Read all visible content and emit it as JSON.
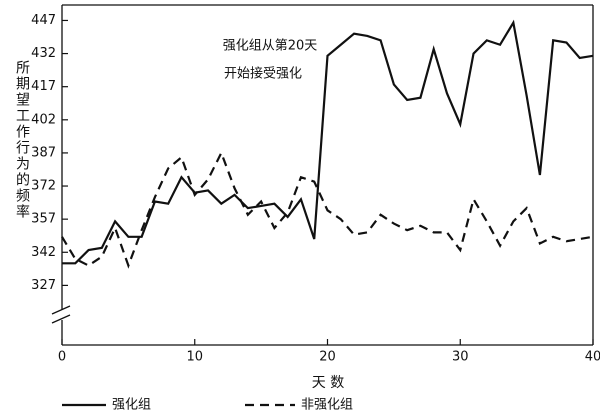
{
  "chart_data": {
    "type": "line",
    "y_label": "所期望工作行为的频率",
    "x_label": "天 数",
    "annotation": [
      "强化组从第20天",
      "开始接受强化"
    ],
    "x": [
      0,
      1,
      2,
      3,
      4,
      5,
      6,
      7,
      8,
      9,
      10,
      11,
      12,
      13,
      14,
      15,
      16,
      17,
      18,
      19,
      20,
      21,
      22,
      23,
      24,
      25,
      26,
      27,
      28,
      29,
      30,
      31,
      32,
      33,
      34,
      35,
      36,
      37,
      38,
      39,
      40
    ],
    "series": [
      {
        "name": "强化组",
        "color": "#111111",
        "line_style": "solid",
        "values": [
          337,
          337,
          343,
          344,
          356,
          349,
          349,
          365,
          364,
          376,
          369,
          370,
          364,
          368,
          362,
          363,
          364,
          358,
          366,
          348,
          431,
          436,
          441,
          440,
          438,
          418,
          411,
          412,
          434,
          414,
          400,
          432,
          438,
          436,
          446,
          413,
          377,
          438,
          437,
          430,
          431
        ]
      },
      {
        "name": "非强化组",
        "color": "#111111",
        "line_style": "dashed",
        "values": [
          349,
          339,
          336,
          340,
          353,
          336,
          352,
          367,
          380,
          385,
          368,
          375,
          387,
          371,
          359,
          365,
          353,
          360,
          376,
          374,
          361,
          357,
          350,
          351,
          359,
          355,
          352,
          354,
          351,
          351,
          343,
          366,
          356,
          345,
          356,
          362,
          346,
          349,
          347,
          348,
          349
        ]
      }
    ],
    "xlim": [
      0,
      40
    ],
    "xticks": [
      0,
      10,
      20,
      30,
      40
    ],
    "ylim": [
      300,
      454
    ],
    "yticks": [
      327,
      342,
      357,
      372,
      387,
      402,
      417,
      432,
      447
    ]
  }
}
